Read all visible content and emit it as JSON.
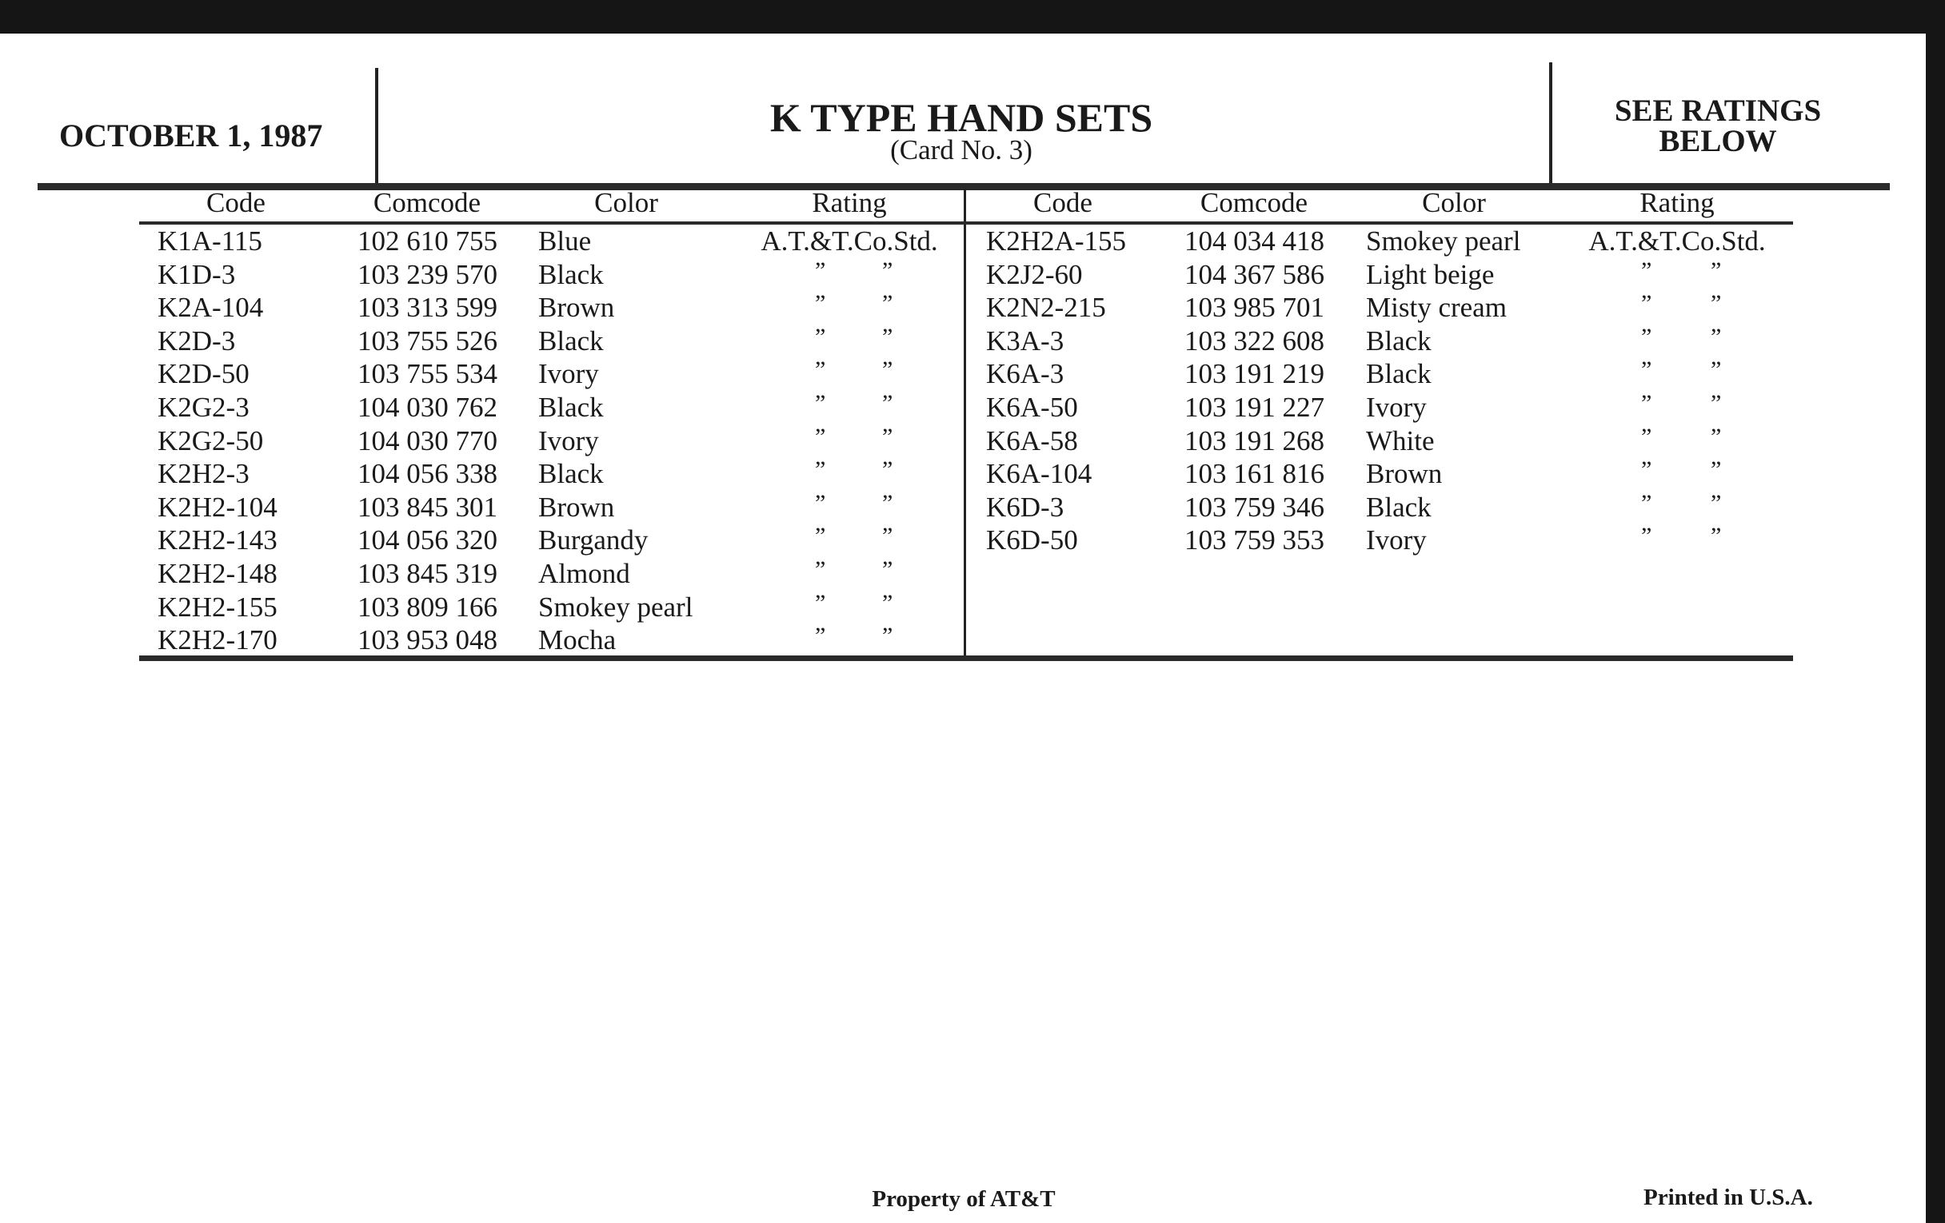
{
  "header": {
    "date": "OCTOBER 1, 1987",
    "title": "K TYPE HAND SETS",
    "subtitle": "(Card No. 3)",
    "ratings_note_line1": "SEE RATINGS",
    "ratings_note_line2": "BELOW"
  },
  "columns": [
    "Code",
    "Comcode",
    "Color",
    "Rating"
  ],
  "ditto_mark": "”",
  "left_table": [
    {
      "code": "K1A-115",
      "comcode": "102 610 755",
      "color": "Blue",
      "rating": "A.T.&T.Co.Std."
    },
    {
      "code": "K1D-3",
      "comcode": "103 239 570",
      "color": "Black",
      "rating": "ditto"
    },
    {
      "code": "K2A-104",
      "comcode": "103 313 599",
      "color": "Brown",
      "rating": "ditto"
    },
    {
      "code": "K2D-3",
      "comcode": "103 755 526",
      "color": "Black",
      "rating": "ditto"
    },
    {
      "code": "K2D-50",
      "comcode": "103 755 534",
      "color": "Ivory",
      "rating": "ditto"
    },
    {
      "code": "K2G2-3",
      "comcode": "104 030 762",
      "color": "Black",
      "rating": "ditto"
    },
    {
      "code": "K2G2-50",
      "comcode": "104 030 770",
      "color": "Ivory",
      "rating": "ditto"
    },
    {
      "code": "K2H2-3",
      "comcode": "104 056 338",
      "color": "Black",
      "rating": "ditto"
    },
    {
      "code": "K2H2-104",
      "comcode": "103 845 301",
      "color": "Brown",
      "rating": "ditto"
    },
    {
      "code": "K2H2-143",
      "comcode": "104 056 320",
      "color": "Burgandy",
      "rating": "ditto"
    },
    {
      "code": "K2H2-148",
      "comcode": "103 845 319",
      "color": "Almond",
      "rating": "ditto"
    },
    {
      "code": "K2H2-155",
      "comcode": "103 809 166",
      "color": "Smokey pearl",
      "rating": "ditto"
    },
    {
      "code": "K2H2-170",
      "comcode": "103 953 048",
      "color": "Mocha",
      "rating": "ditto"
    }
  ],
  "right_table": [
    {
      "code": "K2H2A-155",
      "comcode": "104 034 418",
      "color": "Smokey pearl",
      "rating": "A.T.&T.Co.Std."
    },
    {
      "code": "K2J2-60",
      "comcode": "104 367 586",
      "color": "Light beige",
      "rating": "ditto"
    },
    {
      "code": "K2N2-215",
      "comcode": "103 985 701",
      "color": "Misty cream",
      "rating": "ditto"
    },
    {
      "code": "K3A-3",
      "comcode": "103 322 608",
      "color": "Black",
      "rating": "ditto"
    },
    {
      "code": "K6A-3",
      "comcode": "103 191 219",
      "color": "Black",
      "rating": "ditto"
    },
    {
      "code": "K6A-50",
      "comcode": "103 191 227",
      "color": "Ivory",
      "rating": "ditto"
    },
    {
      "code": "K6A-58",
      "comcode": "103 191 268",
      "color": "White",
      "rating": "ditto"
    },
    {
      "code": "K6A-104",
      "comcode": "103 161 816",
      "color": "Brown",
      "rating": "ditto"
    },
    {
      "code": "K6D-3",
      "comcode": "103 759 346",
      "color": "Black",
      "rating": "ditto"
    },
    {
      "code": "K6D-50",
      "comcode": "103 759 353",
      "color": "Ivory",
      "rating": "ditto"
    }
  ],
  "footer": {
    "property": "Property of AT&T",
    "printed": "Printed in U.S.A."
  }
}
